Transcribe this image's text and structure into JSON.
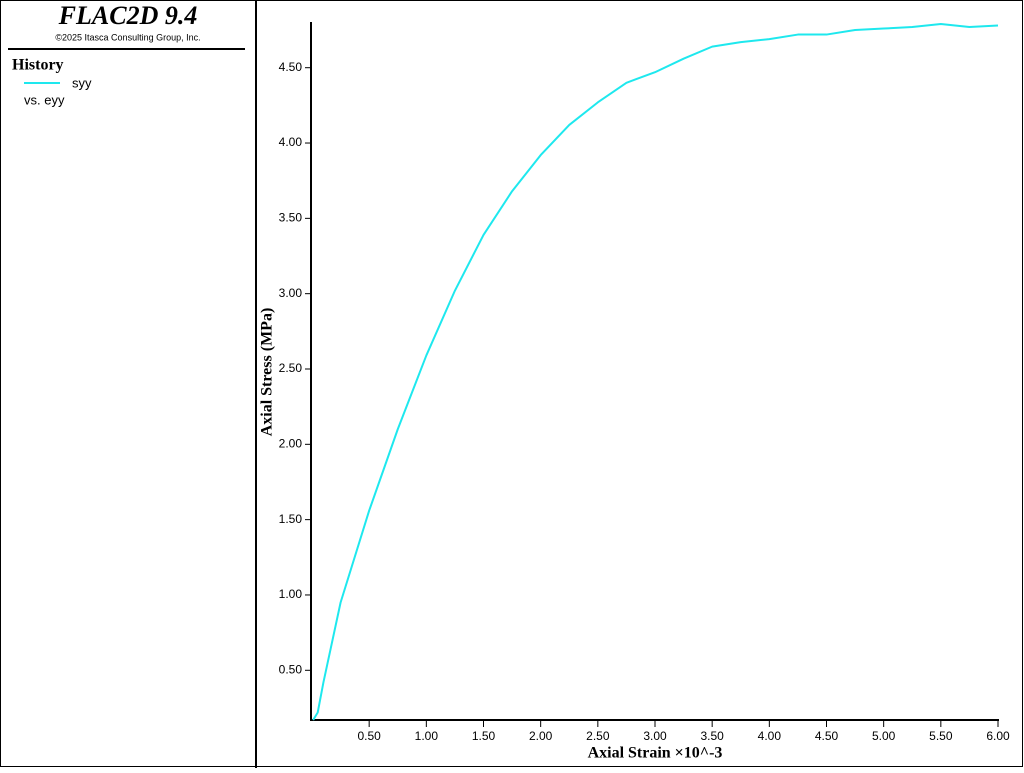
{
  "app": {
    "title": "FLAC2D 9.4",
    "copyright": "©2025 Itasca Consulting Group, Inc.",
    "legend_heading": "History"
  },
  "chart_data": {
    "type": "line",
    "x_label": "Axial Strain ×10^-3",
    "y_label": "Axial Stress (MPa)",
    "legend_x": "vs. eyy",
    "x": [
      0.01,
      0.05,
      0.1,
      0.25,
      0.5,
      0.75,
      1.0,
      1.25,
      1.5,
      1.75,
      2.0,
      2.25,
      2.5,
      2.75,
      3.0,
      3.25,
      3.5,
      3.75,
      4.0,
      4.25,
      4.5,
      4.75,
      5.0,
      5.25,
      5.5,
      5.75,
      6.0
    ],
    "series": [
      {
        "name": "syy",
        "color": "#1ee8ee",
        "values": [
          0.17,
          0.22,
          0.42,
          0.95,
          1.56,
          2.1,
          2.59,
          3.02,
          3.39,
          3.68,
          3.92,
          4.12,
          4.27,
          4.4,
          4.47,
          4.56,
          4.64,
          4.67,
          4.69,
          4.72,
          4.72,
          4.75,
          4.76,
          4.77,
          4.79,
          4.77,
          4.78
        ]
      }
    ],
    "xlim": [
      0,
      6
    ],
    "ylim": [
      0.17,
      4.81
    ],
    "xticks": [
      {
        "value": 0.5,
        "label": "0.50"
      },
      {
        "value": 1,
        "label": "1.00"
      },
      {
        "value": 1.5,
        "label": "1.50"
      },
      {
        "value": 2,
        "label": "2.00"
      },
      {
        "value": 2.5,
        "label": "2.50"
      },
      {
        "value": 3,
        "label": "3.00"
      },
      {
        "value": 3.5,
        "label": "3.50"
      },
      {
        "value": 4,
        "label": "4.00"
      },
      {
        "value": 4.5,
        "label": "4.50"
      },
      {
        "value": 5,
        "label": "5.00"
      },
      {
        "value": 5.5,
        "label": "5.50"
      },
      {
        "value": 6,
        "label": "6.00"
      }
    ],
    "yticks": [
      {
        "value": 0.5,
        "label": "0.50"
      },
      {
        "value": 1,
        "label": "1.00"
      },
      {
        "value": 1.5,
        "label": "1.50"
      },
      {
        "value": 2,
        "label": "2.00"
      },
      {
        "value": 2.5,
        "label": "2.50"
      },
      {
        "value": 3,
        "label": "3.00"
      },
      {
        "value": 3.5,
        "label": "3.50"
      },
      {
        "value": 4,
        "label": "4.00"
      },
      {
        "value": 4.5,
        "label": "4.50"
      }
    ],
    "grid": false
  }
}
